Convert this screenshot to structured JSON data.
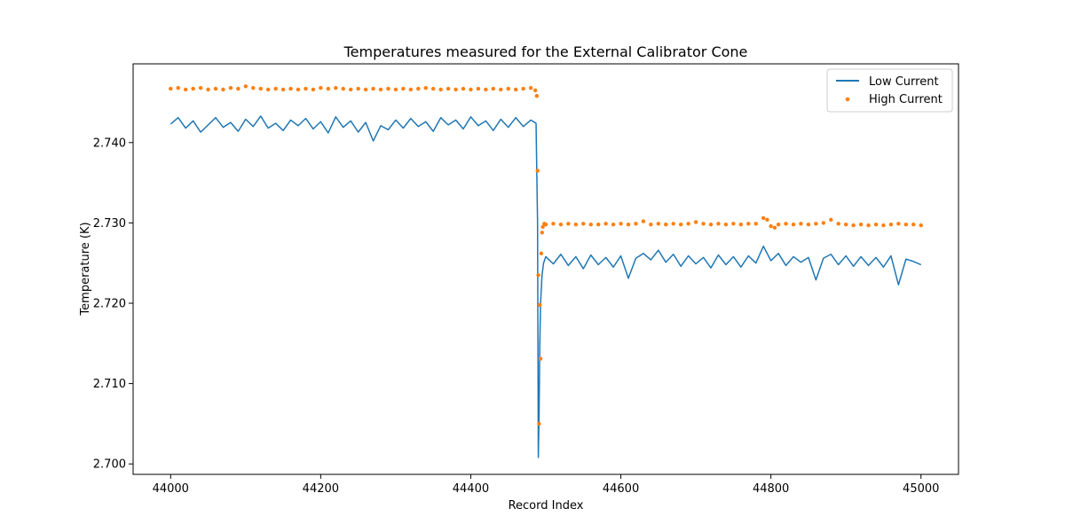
{
  "chart_data": {
    "type": "line",
    "title": "Temperatures measured for the External Calibrator Cone",
    "xlabel": "Record Index",
    "ylabel": "Temperature (K)",
    "xlim": [
      43950,
      45050
    ],
    "ylim": [
      2.6987,
      2.7498
    ],
    "xticks": [
      44000,
      44200,
      44400,
      44600,
      44800,
      45000
    ],
    "xtick_labels": [
      "44000",
      "44200",
      "44400",
      "44600",
      "44800",
      "45000"
    ],
    "yticks": [
      2.7,
      2.71,
      2.72,
      2.73,
      2.74
    ],
    "ytick_labels": [
      "2.700",
      "2.710",
      "2.720",
      "2.730",
      "2.740"
    ],
    "grid": false,
    "legend": {
      "position": "top-right"
    },
    "series": [
      {
        "name": "Low Current",
        "kind": "line",
        "color": "#1f77b4",
        "points": [
          [
            44000,
            2.7423
          ],
          [
            44010,
            2.7431
          ],
          [
            44020,
            2.7418
          ],
          [
            44030,
            2.7427
          ],
          [
            44040,
            2.7413
          ],
          [
            44050,
            2.7422
          ],
          [
            44060,
            2.7431
          ],
          [
            44070,
            2.7419
          ],
          [
            44080,
            2.7425
          ],
          [
            44090,
            2.7414
          ],
          [
            44100,
            2.7429
          ],
          [
            44110,
            2.742
          ],
          [
            44120,
            2.7433
          ],
          [
            44130,
            2.7418
          ],
          [
            44140,
            2.7424
          ],
          [
            44150,
            2.7415
          ],
          [
            44160,
            2.7428
          ],
          [
            44170,
            2.7421
          ],
          [
            44180,
            2.743
          ],
          [
            44190,
            2.7417
          ],
          [
            44200,
            2.7426
          ],
          [
            44210,
            2.7412
          ],
          [
            44220,
            2.7432
          ],
          [
            44230,
            2.7419
          ],
          [
            44240,
            2.7427
          ],
          [
            44250,
            2.7413
          ],
          [
            44260,
            2.7425
          ],
          [
            44270,
            2.7402
          ],
          [
            44280,
            2.7421
          ],
          [
            44290,
            2.7416
          ],
          [
            44300,
            2.7428
          ],
          [
            44310,
            2.7418
          ],
          [
            44320,
            2.743
          ],
          [
            44330,
            2.742
          ],
          [
            44340,
            2.7426
          ],
          [
            44350,
            2.7414
          ],
          [
            44360,
            2.7431
          ],
          [
            44370,
            2.7422
          ],
          [
            44380,
            2.7428
          ],
          [
            44390,
            2.7417
          ],
          [
            44400,
            2.7432
          ],
          [
            44410,
            2.7421
          ],
          [
            44420,
            2.7427
          ],
          [
            44430,
            2.7415
          ],
          [
            44440,
            2.7429
          ],
          [
            44450,
            2.7419
          ],
          [
            44460,
            2.7431
          ],
          [
            44470,
            2.742
          ],
          [
            44480,
            2.7428
          ],
          [
            44487,
            2.7424
          ],
          [
            44489,
            2.73
          ],
          [
            44490,
            2.7008
          ],
          [
            44491,
            2.706
          ],
          [
            44492,
            2.715
          ],
          [
            44493,
            2.72
          ],
          [
            44495,
            2.7235
          ],
          [
            44497,
            2.725
          ],
          [
            44500,
            2.7258
          ],
          [
            44510,
            2.7249
          ],
          [
            44520,
            2.7261
          ],
          [
            44530,
            2.7247
          ],
          [
            44540,
            2.7258
          ],
          [
            44550,
            2.7243
          ],
          [
            44560,
            2.726
          ],
          [
            44570,
            2.7248
          ],
          [
            44580,
            2.7257
          ],
          [
            44590,
            2.7245
          ],
          [
            44600,
            2.7259
          ],
          [
            44610,
            2.7231
          ],
          [
            44620,
            2.7256
          ],
          [
            44630,
            2.7262
          ],
          [
            44640,
            2.7254
          ],
          [
            44650,
            2.7266
          ],
          [
            44660,
            2.7251
          ],
          [
            44670,
            2.7261
          ],
          [
            44680,
            2.7246
          ],
          [
            44690,
            2.7259
          ],
          [
            44700,
            2.7249
          ],
          [
            44710,
            2.7257
          ],
          [
            44720,
            2.7244
          ],
          [
            44730,
            2.726
          ],
          [
            44740,
            2.7248
          ],
          [
            44750,
            2.7258
          ],
          [
            44760,
            2.7245
          ],
          [
            44770,
            2.7259
          ],
          [
            44780,
            2.725
          ],
          [
            44790,
            2.7271
          ],
          [
            44800,
            2.7253
          ],
          [
            44810,
            2.7262
          ],
          [
            44820,
            2.7247
          ],
          [
            44830,
            2.7258
          ],
          [
            44840,
            2.7251
          ],
          [
            44850,
            2.7257
          ],
          [
            44860,
            2.7229
          ],
          [
            44870,
            2.7256
          ],
          [
            44880,
            2.7261
          ],
          [
            44890,
            2.7248
          ],
          [
            44900,
            2.7259
          ],
          [
            44910,
            2.7246
          ],
          [
            44920,
            2.7258
          ],
          [
            44930,
            2.7247
          ],
          [
            44940,
            2.7257
          ],
          [
            44950,
            2.7245
          ],
          [
            44960,
            2.7259
          ],
          [
            44970,
            2.7223
          ],
          [
            44980,
            2.7255
          ],
          [
            44990,
            2.7252
          ],
          [
            45000,
            2.7248
          ]
        ]
      },
      {
        "name": "High Current",
        "kind": "scatter",
        "color": "#ff7f0e",
        "points": [
          [
            44000,
            2.7467
          ],
          [
            44010,
            2.7468
          ],
          [
            44020,
            2.7466
          ],
          [
            44030,
            2.7467
          ],
          [
            44040,
            2.7468
          ],
          [
            44050,
            2.7466
          ],
          [
            44060,
            2.7467
          ],
          [
            44070,
            2.7466
          ],
          [
            44080,
            2.7468
          ],
          [
            44090,
            2.7467
          ],
          [
            44100,
            2.747
          ],
          [
            44110,
            2.7468
          ],
          [
            44120,
            2.7467
          ],
          [
            44130,
            2.7466
          ],
          [
            44140,
            2.7467
          ],
          [
            44150,
            2.7466
          ],
          [
            44160,
            2.7467
          ],
          [
            44170,
            2.7466
          ],
          [
            44180,
            2.7467
          ],
          [
            44190,
            2.7466
          ],
          [
            44200,
            2.7468
          ],
          [
            44210,
            2.7467
          ],
          [
            44220,
            2.7468
          ],
          [
            44230,
            2.7467
          ],
          [
            44240,
            2.7466
          ],
          [
            44250,
            2.7467
          ],
          [
            44260,
            2.7466
          ],
          [
            44270,
            2.7467
          ],
          [
            44280,
            2.7466
          ],
          [
            44290,
            2.7467
          ],
          [
            44300,
            2.7466
          ],
          [
            44310,
            2.7467
          ],
          [
            44320,
            2.7466
          ],
          [
            44330,
            2.7467
          ],
          [
            44340,
            2.7468
          ],
          [
            44350,
            2.7467
          ],
          [
            44360,
            2.7466
          ],
          [
            44370,
            2.7467
          ],
          [
            44380,
            2.7466
          ],
          [
            44390,
            2.7467
          ],
          [
            44400,
            2.7466
          ],
          [
            44410,
            2.7467
          ],
          [
            44420,
            2.7466
          ],
          [
            44430,
            2.7467
          ],
          [
            44440,
            2.7466
          ],
          [
            44450,
            2.7467
          ],
          [
            44460,
            2.7466
          ],
          [
            44470,
            2.7467
          ],
          [
            44480,
            2.7468
          ],
          [
            44486,
            2.7465
          ],
          [
            44488,
            2.7458
          ],
          [
            44489,
            2.7365
          ],
          [
            44490,
            2.7235
          ],
          [
            44491,
            2.705
          ],
          [
            44492,
            2.7198
          ],
          [
            44493,
            2.7131
          ],
          [
            44494,
            2.7262
          ],
          [
            44495,
            2.7288
          ],
          [
            44496,
            2.7295
          ],
          [
            44498,
            2.7299
          ],
          [
            44500,
            2.7298
          ],
          [
            44510,
            2.7299
          ],
          [
            44520,
            2.7298
          ],
          [
            44530,
            2.7299
          ],
          [
            44540,
            2.7298
          ],
          [
            44550,
            2.7299
          ],
          [
            44560,
            2.7298
          ],
          [
            44570,
            2.7298
          ],
          [
            44580,
            2.7299
          ],
          [
            44590,
            2.7298
          ],
          [
            44600,
            2.7299
          ],
          [
            44610,
            2.7298
          ],
          [
            44620,
            2.7299
          ],
          [
            44630,
            2.7302
          ],
          [
            44640,
            2.7298
          ],
          [
            44650,
            2.7299
          ],
          [
            44660,
            2.7298
          ],
          [
            44670,
            2.7299
          ],
          [
            44680,
            2.7298
          ],
          [
            44690,
            2.7299
          ],
          [
            44700,
            2.7301
          ],
          [
            44710,
            2.7299
          ],
          [
            44720,
            2.7298
          ],
          [
            44730,
            2.7299
          ],
          [
            44740,
            2.7298
          ],
          [
            44750,
            2.7299
          ],
          [
            44760,
            2.7298
          ],
          [
            44770,
            2.7299
          ],
          [
            44780,
            2.7299
          ],
          [
            44790,
            2.7306
          ],
          [
            44795,
            2.7304
          ],
          [
            44800,
            2.7296
          ],
          [
            44805,
            2.7294
          ],
          [
            44810,
            2.7298
          ],
          [
            44820,
            2.7299
          ],
          [
            44830,
            2.7298
          ],
          [
            44840,
            2.7299
          ],
          [
            44850,
            2.7298
          ],
          [
            44860,
            2.7299
          ],
          [
            44870,
            2.73
          ],
          [
            44880,
            2.7304
          ],
          [
            44890,
            2.7299
          ],
          [
            44900,
            2.7298
          ],
          [
            44910,
            2.7297
          ],
          [
            44920,
            2.7298
          ],
          [
            44930,
            2.7297
          ],
          [
            44940,
            2.7298
          ],
          [
            44950,
            2.7297
          ],
          [
            44960,
            2.7298
          ],
          [
            44970,
            2.7299
          ],
          [
            44980,
            2.7298
          ],
          [
            44990,
            2.7298
          ],
          [
            45000,
            2.7297
          ]
        ]
      }
    ]
  }
}
